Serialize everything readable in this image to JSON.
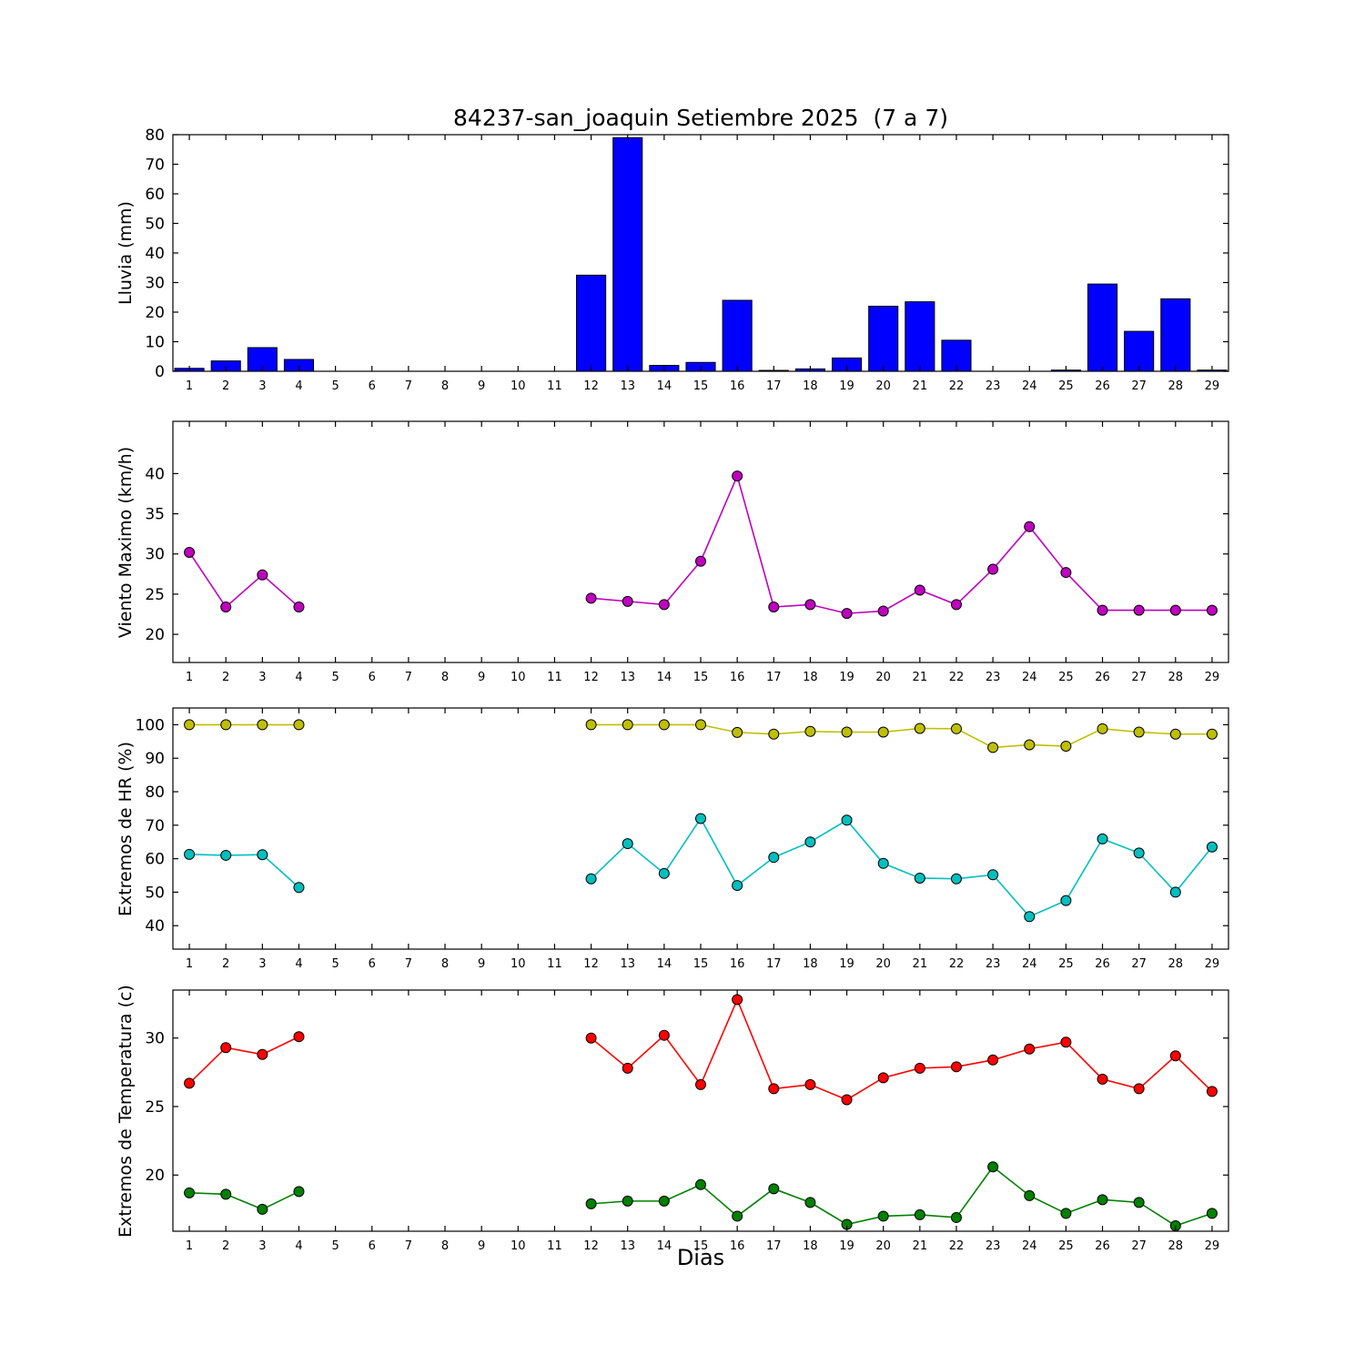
{
  "figure": {
    "title": "84237-san_joaquin Setiembre 2025  (7 a 7)",
    "xlabel": "Dias"
  },
  "xticks": [
    1,
    2,
    3,
    4,
    5,
    6,
    7,
    8,
    9,
    10,
    11,
    12,
    13,
    14,
    15,
    16,
    17,
    18,
    19,
    20,
    21,
    22,
    23,
    24,
    25,
    26,
    27,
    28,
    29
  ],
  "chart_data": [
    {
      "type": "bar",
      "name": "lluvia",
      "ylabel": "Lluvia (mm)",
      "color": "#0000ff",
      "x": [
        1,
        2,
        3,
        4,
        5,
        6,
        7,
        8,
        9,
        10,
        11,
        12,
        13,
        14,
        15,
        16,
        17,
        18,
        19,
        20,
        21,
        22,
        23,
        24,
        25,
        26,
        27,
        28,
        29
      ],
      "values": [
        1.0,
        3.5,
        8.0,
        4.0,
        0,
        0,
        0,
        0,
        0,
        0,
        0,
        32.5,
        79.0,
        2.0,
        3.0,
        24.0,
        0.3,
        0.8,
        4.5,
        22.0,
        23.5,
        10.5,
        0,
        0,
        0.4,
        29.5,
        13.5,
        24.5,
        0.4
      ],
      "ylim": [
        0,
        80
      ],
      "yticks": [
        0,
        10,
        20,
        30,
        40,
        50,
        60,
        70,
        80
      ],
      "grid": false
    },
    {
      "type": "line",
      "name": "viento-maximo",
      "ylabel": "Viento Maximo (km/h)",
      "x": [
        1,
        2,
        3,
        4,
        12,
        13,
        14,
        15,
        16,
        17,
        18,
        19,
        20,
        21,
        22,
        23,
        24,
        25,
        26,
        27,
        28,
        29
      ],
      "ylim": [
        16.5,
        46.5
      ],
      "yticks": [
        20,
        25,
        30,
        35,
        40
      ],
      "grid": false,
      "series": [
        {
          "name": "viento_maximo",
          "color": "#bf00bf",
          "values": [
            30.2,
            23.4,
            27.4,
            23.4,
            24.5,
            24.1,
            23.7,
            29.1,
            39.7,
            23.4,
            23.7,
            22.6,
            22.9,
            25.5,
            23.7,
            28.1,
            33.4,
            27.7,
            23.0,
            23.0,
            23.0,
            23.0
          ]
        }
      ]
    },
    {
      "type": "line",
      "name": "extremos-hr",
      "ylabel": "Extremos de HR (%)",
      "x": [
        1,
        2,
        3,
        4,
        12,
        13,
        14,
        15,
        16,
        17,
        18,
        19,
        20,
        21,
        22,
        23,
        24,
        25,
        26,
        27,
        28,
        29
      ],
      "ylim": [
        33,
        105
      ],
      "yticks": [
        40,
        50,
        60,
        70,
        80,
        90,
        100
      ],
      "grid": false,
      "series": [
        {
          "name": "hr_maxima",
          "color": "#bfbf00",
          "values": [
            100,
            100,
            100,
            100,
            100,
            100,
            100,
            100,
            97.7,
            97.2,
            98.0,
            97.8,
            97.8,
            98.9,
            98.8,
            93.2,
            94.0,
            93.6,
            98.8,
            97.8,
            97.2,
            97.2
          ]
        },
        {
          "name": "hr_minima",
          "color": "#00bfbf",
          "values": [
            61.3,
            61.0,
            61.2,
            51.4,
            54.0,
            64.5,
            55.6,
            72.0,
            52.0,
            60.4,
            65.0,
            71.5,
            58.6,
            54.2,
            54.0,
            55.2,
            42.7,
            47.5,
            65.9,
            61.7,
            50.0,
            63.5
          ]
        }
      ]
    },
    {
      "type": "line",
      "name": "extremos-temperatura",
      "ylabel": "Extremos de Temperatura (c)",
      "x": [
        1,
        2,
        3,
        4,
        12,
        13,
        14,
        15,
        16,
        17,
        18,
        19,
        20,
        21,
        22,
        23,
        24,
        25,
        26,
        27,
        28,
        29
      ],
      "ylim": [
        15.9,
        33.5
      ],
      "yticks": [
        20,
        25,
        30
      ],
      "grid": false,
      "series": [
        {
          "name": "temp_maxima",
          "color": "#ff0000",
          "values": [
            26.7,
            29.3,
            28.8,
            30.1,
            30.0,
            27.8,
            30.2,
            26.6,
            32.8,
            26.3,
            26.6,
            25.5,
            27.1,
            27.8,
            27.9,
            28.4,
            29.2,
            29.7,
            27.0,
            26.3,
            28.7,
            26.1
          ]
        },
        {
          "name": "temp_minima",
          "color": "#008000",
          "values": [
            18.7,
            18.6,
            17.5,
            18.8,
            17.9,
            18.1,
            18.1,
            19.3,
            17.0,
            19.0,
            18.0,
            16.4,
            17.0,
            17.1,
            16.9,
            20.6,
            18.5,
            17.2,
            18.2,
            18.0,
            16.3,
            17.2
          ]
        }
      ]
    }
  ]
}
